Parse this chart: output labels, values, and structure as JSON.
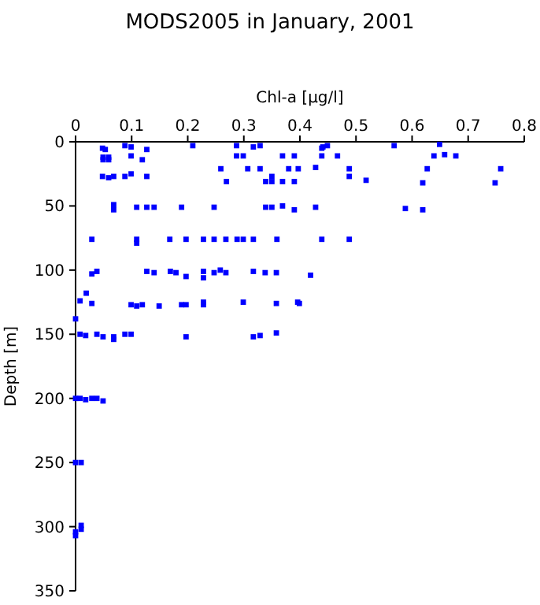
{
  "chart_data": {
    "type": "scatter",
    "title": "MODS2005 in January, 2001",
    "xlabel": "Chl-a [µg/l]",
    "ylabel": "Depth [m]",
    "xlim": [
      0,
      0.8
    ],
    "xticks": [
      0,
      0.1,
      0.2,
      0.3,
      0.4,
      0.5,
      0.6,
      0.7,
      0.8
    ],
    "ylim": [
      350,
      0
    ],
    "yticks": [
      0,
      50,
      100,
      150,
      200,
      250,
      300,
      350
    ],
    "marker": "square",
    "series": [
      {
        "color": "#0000ff",
        "x": [
          0.048,
          0.053,
          0.049,
          0.059,
          0.059,
          0.049,
          0.088,
          0.099,
          0.127,
          0.099,
          0.119,
          0.048,
          0.059,
          0.068,
          0.088,
          0.099,
          0.127,
          0.209,
          0.287,
          0.287,
          0.299,
          0.317,
          0.329,
          0.259,
          0.269,
          0.307,
          0.329,
          0.339,
          0.35,
          0.35,
          0.369,
          0.39,
          0.369,
          0.39,
          0.38,
          0.068,
          0.068,
          0.109,
          0.127,
          0.14,
          0.189,
          0.247,
          0.339,
          0.35,
          0.369,
          0.39,
          0.029,
          0.109,
          0.109,
          0.168,
          0.197,
          0.228,
          0.247,
          0.268,
          0.288,
          0.299,
          0.317,
          0.359,
          0.441,
          0.449,
          0.439,
          0.568,
          0.649,
          0.439,
          0.467,
          0.639,
          0.658,
          0.678,
          0.397,
          0.428,
          0.488,
          0.627,
          0.758,
          0.488,
          0.518,
          0.619,
          0.748,
          0.428,
          0.588,
          0.619,
          0.439,
          0.488,
          0,
          0.029,
          0.038,
          0.127,
          0.14,
          0.169,
          0.179,
          0.197,
          0.228,
          0.228,
          0.247,
          0.258,
          0.268,
          0.317,
          0.338,
          0.358,
          0.019,
          0.008,
          0.029,
          0.099,
          0.109,
          0.119,
          0.149,
          0.189,
          0.197,
          0.228,
          0.228,
          0.299,
          0.358,
          0.396,
          0.008,
          0.018,
          0.038,
          0.049,
          0.068,
          0.068,
          0.088,
          0.099,
          0.197,
          0.317,
          0.329,
          0.358,
          0,
          0.008,
          0.018,
          0.029,
          0.038,
          0.049,
          0.419,
          0.399,
          0,
          0.01,
          0.01,
          0.01,
          0,
          0
        ],
        "values": [
          5,
          6,
          12,
          12,
          14,
          14,
          3,
          4,
          6,
          11,
          14,
          27,
          28,
          27,
          27,
          25,
          27,
          3,
          3,
          11,
          11,
          4,
          3,
          21,
          31,
          21,
          21,
          31,
          27,
          31,
          11,
          11,
          31,
          31,
          21,
          49,
          53,
          51,
          51,
          51,
          51,
          51,
          51,
          51,
          50,
          53,
          76,
          76,
          79,
          76,
          76,
          76,
          76,
          76,
          76,
          76,
          76,
          76,
          4,
          3,
          5,
          3,
          2,
          11,
          11,
          11,
          10,
          11,
          21,
          20,
          21,
          21,
          21,
          27,
          30,
          32,
          32,
          51,
          52,
          53,
          76,
          76,
          138,
          103,
          101,
          101,
          102,
          101,
          102,
          105,
          101,
          106,
          102,
          100,
          102,
          101,
          102,
          102,
          118,
          124,
          126,
          127,
          128,
          127,
          128,
          127,
          127,
          125,
          127,
          125,
          126,
          125,
          150,
          151,
          150,
          152,
          152,
          154,
          150,
          150,
          152,
          152,
          151,
          149,
          200,
          200,
          201,
          200,
          200,
          202,
          104,
          126,
          250,
          250,
          299,
          302,
          304,
          307
        ]
      }
    ]
  }
}
